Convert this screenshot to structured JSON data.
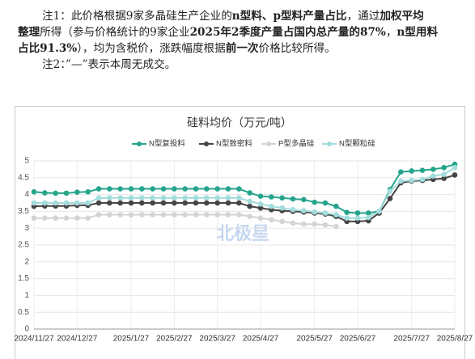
{
  "notes": [
    [
      {
        "text": "注1：此价格根据9家多晶硅生产企业的",
        "bold": false
      },
      {
        "text": "n型料、p型料产量占比",
        "bold": true
      },
      {
        "text": "，通过",
        "bold": false
      },
      {
        "text": "加权平均",
        "bold": true
      }
    ],
    [
      {
        "text": "整理",
        "bold": true
      },
      {
        "text": "所得（参与价格统计的9家企业",
        "bold": false
      },
      {
        "text": "2025年2季度产量占国内总产量的87%",
        "bold": true
      },
      {
        "text": "，",
        "bold": false
      },
      {
        "text": "n型用料",
        "bold": true
      }
    ],
    [
      {
        "text": "占比91.3%",
        "bold": true
      },
      {
        "text": "），均为含税价，涨跌幅度根据",
        "bold": false
      },
      {
        "text": "前一次",
        "bold": true
      },
      {
        "text": "价格比较所得。",
        "bold": false
      }
    ],
    [
      {
        "text": "注2：”—”表示本周无成交。",
        "bold": false
      }
    ]
  ],
  "chart_data": {
    "type": "line",
    "title": "硅料均价（万元/吨）",
    "watermark": "北极星",
    "categories": [
      "2024/11/27",
      null,
      null,
      null,
      "2024/12/27",
      null,
      null,
      null,
      null,
      "2025/1/27",
      null,
      null,
      null,
      "2025/2/27",
      null,
      null,
      null,
      "2025/3/27",
      null,
      null,
      null,
      "2025/4/27",
      null,
      null,
      null,
      null,
      "2025/5/27",
      null,
      null,
      null,
      "2025/6/27",
      null,
      null,
      null,
      null,
      "2025/7/27",
      null,
      null,
      null,
      "2025/8/27"
    ],
    "series": [
      {
        "name": "N型复投料",
        "color": "#26a58c",
        "values": [
          4.08,
          4.05,
          4.04,
          4.04,
          4.07,
          4.08,
          4.17,
          4.17,
          4.17,
          4.17,
          4.17,
          4.17,
          4.17,
          4.17,
          4.17,
          4.17,
          4.17,
          4.17,
          4.17,
          4.17,
          4.05,
          3.95,
          3.93,
          3.9,
          3.87,
          3.85,
          3.77,
          3.75,
          3.65,
          3.47,
          3.45,
          3.45,
          3.5,
          4.15,
          4.67,
          4.7,
          4.72,
          4.75,
          4.8,
          4.9
        ]
      },
      {
        "name": "N型致密料",
        "color": "#454545",
        "values": [
          3.65,
          3.66,
          3.66,
          3.66,
          3.68,
          3.68,
          3.75,
          3.75,
          3.75,
          3.75,
          3.75,
          3.75,
          3.75,
          3.75,
          3.75,
          3.75,
          3.75,
          3.75,
          3.75,
          3.75,
          3.65,
          3.6,
          3.55,
          3.52,
          3.5,
          3.48,
          3.45,
          3.42,
          3.35,
          3.2,
          3.2,
          3.22,
          3.45,
          3.88,
          4.35,
          4.4,
          4.42,
          4.45,
          4.48,
          4.58
        ]
      },
      {
        "name": "P型多晶硅",
        "color": "#d4d4d4",
        "values": [
          3.3,
          3.3,
          3.3,
          3.3,
          3.3,
          3.3,
          3.4,
          3.4,
          3.4,
          3.4,
          3.4,
          3.4,
          3.4,
          3.4,
          3.4,
          3.4,
          3.4,
          3.4,
          3.4,
          3.4,
          3.35,
          3.3,
          3.25,
          3.2,
          3.15,
          3.12,
          3.12,
          3.1,
          3.05,
          null,
          null,
          null,
          null,
          null,
          null,
          null,
          null,
          null,
          null,
          null
        ]
      },
      {
        "name": "N型颗粒硅",
        "color": "#a3dcdc",
        "values": [
          3.75,
          3.75,
          3.75,
          3.75,
          3.75,
          3.75,
          3.9,
          3.9,
          3.9,
          3.9,
          3.9,
          3.9,
          3.9,
          3.9,
          3.9,
          3.9,
          3.9,
          3.9,
          3.9,
          3.9,
          3.8,
          3.72,
          3.65,
          3.6,
          3.55,
          3.52,
          3.48,
          3.45,
          3.4,
          3.3,
          3.3,
          3.32,
          3.5,
          4.1,
          4.4,
          4.42,
          4.45,
          4.55,
          4.6,
          4.8
        ]
      }
    ],
    "ylim": [
      0,
      5
    ],
    "yticks": [
      0,
      0.5,
      1,
      1.5,
      2,
      2.5,
      3,
      3.5,
      4,
      4.5,
      5
    ],
    "grid": true,
    "legend": "top"
  }
}
